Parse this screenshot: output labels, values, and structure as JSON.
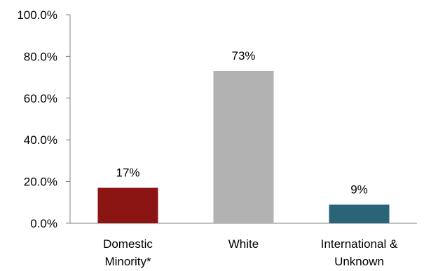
{
  "chart_data": {
    "type": "bar",
    "title": "",
    "xlabel": "",
    "ylabel": "",
    "ylim": [
      0,
      100
    ],
    "y_ticks": [
      "0.0%",
      "20.0%",
      "40.0%",
      "60.0%",
      "80.0%",
      "100.0%"
    ],
    "categories": [
      [
        "Domestic",
        "Minority*"
      ],
      [
        "White"
      ],
      [
        "International &",
        "Unknown"
      ]
    ],
    "values": [
      17,
      73,
      9
    ],
    "data_labels": [
      "17%",
      "73%",
      "9%"
    ],
    "colors": [
      "#8B1513",
      "#B2B2B2",
      "#2A6478"
    ],
    "grid": false,
    "legend": "none"
  }
}
